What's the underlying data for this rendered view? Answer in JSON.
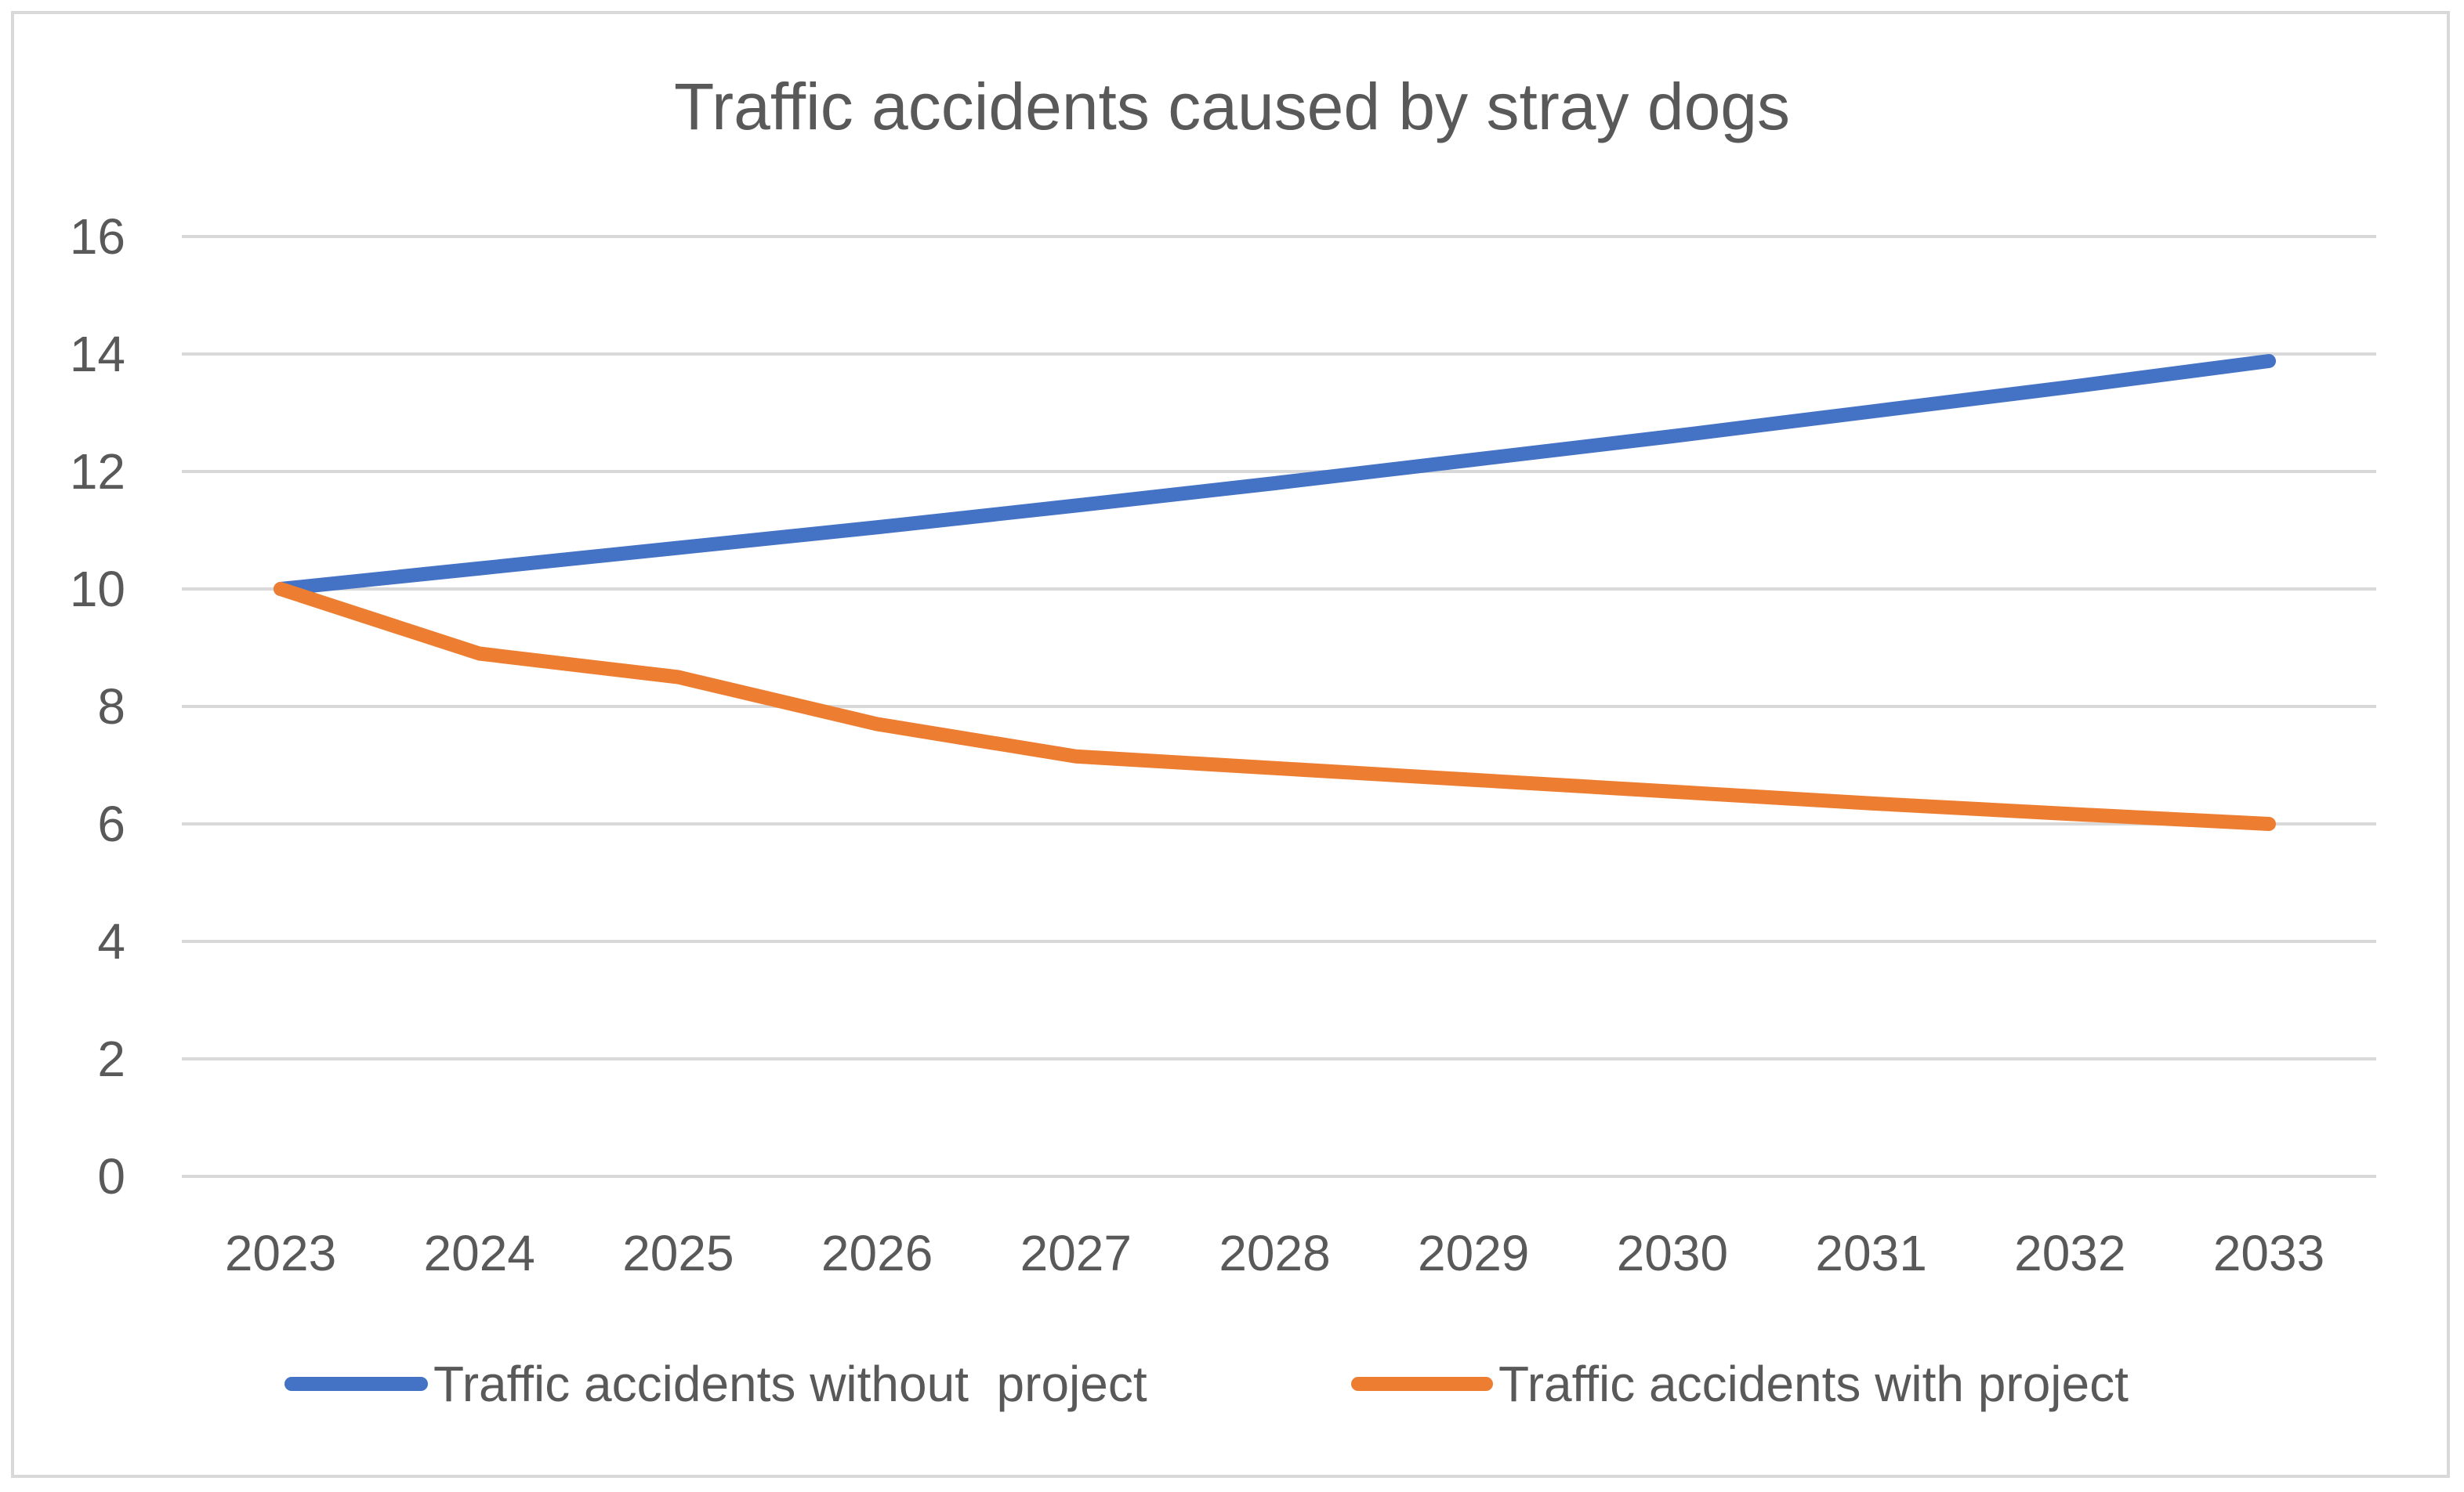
{
  "chart_data": {
    "type": "line",
    "title": "Traffic accidents caused by stray dogs",
    "xlabel": "",
    "ylabel": "",
    "categories": [
      "2023",
      "2024",
      "2025",
      "2026",
      "2027",
      "2028",
      "2029",
      "2030",
      "2031",
      "2032",
      "2033"
    ],
    "ylim": [
      0,
      16
    ],
    "yticks": [
      0,
      2,
      4,
      6,
      8,
      10,
      12,
      14,
      16
    ],
    "grid": true,
    "legend_position": "bottom",
    "series": [
      {
        "name": "Traffic accidents without  project",
        "color": "#4472c4",
        "values": [
          10,
          10.35,
          10.7,
          11.05,
          11.42,
          11.8,
          12.2,
          12.6,
          13.02,
          13.44,
          13.88
        ]
      },
      {
        "name": "Traffic accidents with project",
        "color": "#ed7d31",
        "values": [
          10,
          8.9,
          8.5,
          7.7,
          7.15,
          6.95,
          6.75,
          6.55,
          6.35,
          6.17,
          6.0
        ]
      }
    ]
  }
}
